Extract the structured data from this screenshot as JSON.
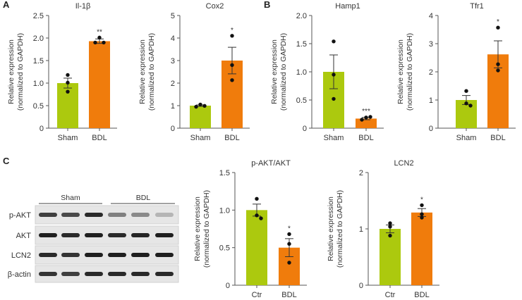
{
  "panels": {
    "a": "A",
    "b": "B",
    "c": "C"
  },
  "colors": {
    "sham": "#acc90e",
    "bdl": "#f07c0c",
    "axis": "#555555",
    "point": "#111111"
  },
  "chart_data": [
    {
      "type": "bar",
      "panel": "A",
      "title": "Il-1β",
      "ylabel": [
        "Relative expression",
        "(normalized to GAPDH)"
      ],
      "categories": [
        "Sham",
        "BDL"
      ],
      "ylim": [
        0,
        2.5
      ],
      "yticks": [
        "0",
        "0.5",
        "1.0",
        "1.5",
        "2.0",
        "2.5"
      ],
      "values": [
        1.0,
        1.93
      ],
      "sem": [
        0.11,
        0.05
      ],
      "points": [
        [
          1.18,
          1.01,
          0.81
        ],
        [
          1.9,
          2.01,
          1.9
        ]
      ],
      "significance": [
        "",
        "**"
      ]
    },
    {
      "type": "bar",
      "panel": "A",
      "title": "Cox2",
      "ylabel": [
        "Relative expression",
        "(normalized to GAPDH)"
      ],
      "categories": [
        "Sham",
        "BDL"
      ],
      "ylim": [
        0,
        5
      ],
      "yticks": [
        "0",
        "1",
        "2",
        "3",
        "4",
        "5"
      ],
      "values": [
        1.0,
        3.0
      ],
      "sem": [
        0.03,
        0.59
      ],
      "points": [
        [
          0.95,
          1.05,
          0.99
        ],
        [
          4.1,
          2.8,
          2.13
        ]
      ],
      "significance": [
        "",
        "*"
      ]
    },
    {
      "type": "bar",
      "panel": "B",
      "title": "Hamp1",
      "ylabel": [
        "Relative expression",
        "(normalized to GAPDH)"
      ],
      "categories": [
        "Sham",
        "BDL"
      ],
      "ylim": [
        0,
        2.0
      ],
      "yticks": [
        "0",
        "0.5",
        "1.0",
        "1.5",
        "2.0"
      ],
      "values": [
        1.0,
        0.17
      ],
      "sem": [
        0.3,
        0.02
      ],
      "points": [
        [
          1.54,
          0.95,
          0.52
        ],
        [
          0.15,
          0.19,
          0.2
        ]
      ],
      "significance": [
        "",
        "***"
      ]
    },
    {
      "type": "bar",
      "panel": "B",
      "title": "Tfr1",
      "ylabel": [
        "Relative expression",
        "(normalized to GAPDH)"
      ],
      "categories": [
        "Sham",
        "BDL"
      ],
      "ylim": [
        0,
        4
      ],
      "yticks": [
        "0",
        "1",
        "2",
        "3",
        "4"
      ],
      "values": [
        1.0,
        2.62
      ],
      "sem": [
        0.16,
        0.48
      ],
      "points": [
        [
          1.32,
          0.88,
          0.8
        ],
        [
          3.57,
          2.27,
          2.05
        ]
      ],
      "significance": [
        "",
        "*"
      ]
    },
    {
      "type": "bar",
      "panel": "C",
      "title": "p-AKT/AKT",
      "ylabel": [
        "Relative expression",
        "(normalized to GAPDH)"
      ],
      "categories": [
        "Ctr",
        "BDL"
      ],
      "ylim": [
        0,
        1.5
      ],
      "yticks": [
        "0",
        "0.5",
        "1.0",
        "1.5"
      ],
      "values": [
        1.0,
        0.5
      ],
      "sem": [
        0.08,
        0.12
      ],
      "points": [
        [
          1.15,
          0.93,
          0.89
        ],
        [
          0.68,
          0.55,
          0.3
        ]
      ],
      "significance": [
        "",
        "*"
      ]
    },
    {
      "type": "bar",
      "panel": "C",
      "title": "LCN2",
      "ylabel": [
        "Relative expression",
        "(normalized to GAPDH)"
      ],
      "categories": [
        "Ctr",
        "BDL"
      ],
      "ylim": [
        0,
        2
      ],
      "yticks": [
        "0",
        "1",
        "2"
      ],
      "values": [
        1.0,
        1.29
      ],
      "sem": [
        0.07,
        0.07
      ],
      "points": [
        [
          1.1,
          1.04,
          0.88
        ],
        [
          1.42,
          1.26,
          1.2
        ]
      ],
      "significance": [
        "",
        "*"
      ]
    }
  ],
  "blot": {
    "groups": [
      "Sham",
      "BDL"
    ],
    "rows": [
      {
        "label": "p-AKT",
        "intensity": [
          0.8,
          0.75,
          0.9,
          0.5,
          0.45,
          0.25
        ]
      },
      {
        "label": "AKT",
        "intensity": [
          0.95,
          0.9,
          0.95,
          0.9,
          0.92,
          0.95
        ]
      },
      {
        "label": "LCN2",
        "intensity": [
          0.9,
          0.85,
          0.95,
          0.95,
          0.95,
          0.95
        ]
      },
      {
        "label": "β-actin",
        "intensity": [
          0.85,
          0.8,
          0.9,
          0.9,
          0.9,
          0.9
        ]
      }
    ]
  }
}
